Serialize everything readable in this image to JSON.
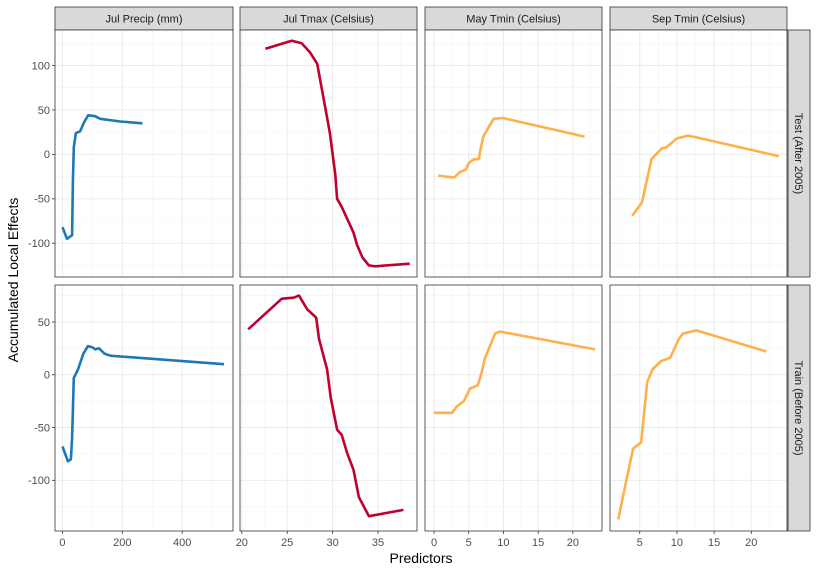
{
  "chart_data": {
    "type": "line",
    "title": "",
    "xlabel": "Predictors",
    "ylabel": "Accumulated Local Effects",
    "grid": true,
    "legend": "none",
    "facet_columns": [
      "Jul Precip (mm)",
      "Jul Tmax (Celsius)",
      "May Tmin (Celsius)",
      "Sep Tmin (Celsius)"
    ],
    "facet_rows": [
      "Test (After 2005)",
      "Train (Before 2005)"
    ],
    "colors": {
      "Jul Precip (mm)": "#1f78b4",
      "Jul Tmax (Celsius)": "#c0002f",
      "May Tmin (Celsius)": "#fdb04b",
      "Sep Tmin (Celsius)": "#fdb04b"
    },
    "rows": [
      {
        "label": "Test (After 2005)",
        "ylim": [
          -138,
          140
        ],
        "yticks": [
          -100,
          -50,
          0,
          50,
          100
        ],
        "panels": [
          {
            "predictor": "Jul Precip (mm)",
            "x": [
              0,
              15,
              32,
              35,
              38,
              45,
              59,
              72,
              86,
              109,
              126,
              193,
              267
            ],
            "y": [
              -82,
              -95,
              -91,
              -30,
              8,
              24,
              26,
              36,
              44,
              43,
              40,
              37,
              35
            ]
          },
          {
            "predictor": "Jul Tmax (Celsius)",
            "x": [
              22.6,
              25.5,
              26.6,
              27.5,
              28.3,
              29.1,
              29.7,
              30.3,
              30.5,
              31.0,
              32.3,
              32.7,
              33.3,
              34.0,
              34.7,
              38.5
            ],
            "y": [
              119,
              128,
              125,
              115,
              102,
              58,
              24,
              -23,
              -50,
              -59,
              -88,
              -102,
              -116,
              -125,
              -126,
              -123
            ]
          },
          {
            "predictor": "May Tmin (Celsius)",
            "x": [
              0.6,
              2.9,
              3.7,
              4.6,
              5.0,
              5.6,
              6.5,
              6.6,
              7.1,
              7.9,
              8.6,
              9.9,
              21.7
            ],
            "y": [
              -24,
              -26,
              -20,
              -17,
              -10,
              -6,
              -5,
              2,
              20,
              31,
              40,
              41,
              20
            ]
          },
          {
            "predictor": "Sep Tmin (Celsius)",
            "x": [
              4.0,
              5.3,
              6.6,
              8.0,
              8.6,
              10.0,
              11.5,
              12.7,
              23.7
            ],
            "y": [
              -69,
              -54,
              -5,
              7,
              8,
              18,
              21,
              19,
              -2
            ]
          }
        ]
      },
      {
        "label": "Train (Before 2005)",
        "ylim": [
          -148,
          85
        ],
        "yticks": [
          -100,
          -50,
          0,
          50
        ],
        "panels": [
          {
            "predictor": "Jul Precip (mm)",
            "x": [
              0,
              18,
              28,
              32,
              38,
              52,
              70,
              85,
              100,
              110,
              122,
              140,
              160,
              540
            ],
            "y": [
              -68,
              -82,
              -80,
              -60,
              -3,
              5,
              20,
              27,
              26,
              24,
              25,
              20,
              18,
              10
            ]
          },
          {
            "predictor": "Jul Tmax (Celsius)",
            "x": [
              20.7,
              24.4,
              25.7,
              26.3,
              27.2,
              28.2,
              28.5,
              29.4,
              29.8,
              30.5,
              31.0,
              31.6,
              32.3,
              32.9,
              34.0,
              37.8
            ],
            "y": [
              43,
              72,
              73,
              75,
              62,
              54,
              34,
              5,
              -22,
              -52,
              -57,
              -74,
              -90,
              -116,
              -134,
              -128
            ]
          },
          {
            "predictor": "May Tmin (Celsius)",
            "x": [
              0,
              2.6,
              3.3,
              4.3,
              5.2,
              6.3,
              6.9,
              7.3,
              8.8,
              9.5,
              10.2,
              23.2
            ],
            "y": [
              -36,
              -36,
              -30,
              -25,
              -13,
              -10,
              3,
              15,
              39,
              41,
              40,
              24
            ]
          },
          {
            "predictor": "Sep Tmin (Celsius)",
            "x": [
              2.1,
              4.1,
              5.2,
              6.0,
              6.7,
              7.9,
              9.1,
              10.2,
              10.8,
              12.6,
              22.0
            ],
            "y": [
              -137,
              -70,
              -64,
              -7,
              5,
              13,
              16,
              33,
              39,
              42,
              22
            ]
          }
        ]
      }
    ],
    "columns": [
      {
        "label": "Jul Precip (mm)",
        "xlim": [
          -25,
          570
        ],
        "xticks": [
          0,
          200,
          400
        ],
        "minor": [
          100,
          300,
          500
        ]
      },
      {
        "label": "Jul Tmax (Celsius)",
        "xlim": [
          19.8,
          39.3
        ],
        "xticks": [
          20,
          25,
          30,
          35
        ],
        "minor": [
          22.5,
          27.5,
          32.5,
          37.5
        ]
      },
      {
        "label": "May Tmin (Celsius)",
        "xlim": [
          -1.3,
          24.2
        ],
        "xticks": [
          0,
          5,
          10,
          15,
          20
        ],
        "minor": [
          2.5,
          7.5,
          12.5,
          17.5,
          22.5
        ]
      },
      {
        "label": "Sep Tmin (Celsius)",
        "xlim": [
          1.0,
          24.8
        ],
        "xticks": [
          5,
          10,
          15,
          20
        ],
        "minor": [
          2.5,
          7.5,
          12.5,
          17.5,
          22.5
        ]
      }
    ]
  }
}
